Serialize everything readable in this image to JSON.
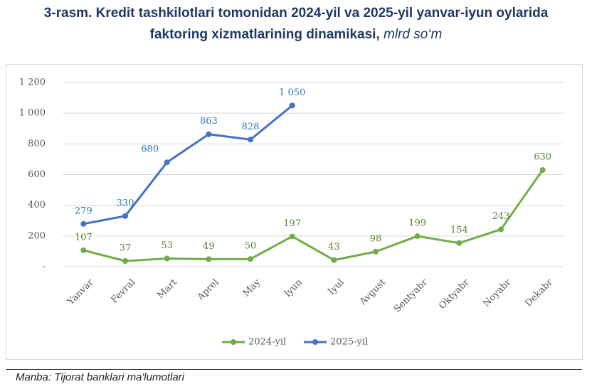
{
  "chart_data": {
    "type": "line",
    "title": "3-rasm. Kredit tashkilotlari tomonidan 2024-yil va 2025-yil yanvar-iyun oylarida faktoring xizmatlarining dinamikasi,",
    "unit": "mlrd so‘m",
    "categories": [
      "Yanvar",
      "Fevral",
      "Mart",
      "Aprel",
      "May",
      "Iyun",
      "Iyul",
      "Avgust",
      "Sentyabr",
      "Oktyabr",
      "Noyabr",
      "Dekabr"
    ],
    "series": [
      {
        "name": "2024-yil",
        "color": "#70ad47",
        "label_color": "#548235",
        "values": [
          107,
          37,
          53,
          49,
          50,
          197,
          43,
          98,
          199,
          154,
          243,
          630
        ]
      },
      {
        "name": "2025-yil",
        "color": "#4472c4",
        "label_color": "#2e75b6",
        "values": [
          279,
          330,
          680,
          863,
          828,
          1050,
          null,
          null,
          null,
          null,
          null,
          null
        ],
        "value_labels": [
          "279",
          "330",
          "680",
          "863",
          "828",
          "1 050",
          null,
          null,
          null,
          null,
          null,
          null
        ]
      }
    ],
    "ylim": [
      0,
      1200
    ],
    "yticks": [
      {
        "value": 0,
        "label": "-"
      },
      200,
      400,
      600,
      800,
      {
        "value": 1000,
        "label": "1 000"
      },
      {
        "value": 1200,
        "label": "1 200"
      }
    ],
    "grid": true,
    "legend": "bottom",
    "source": "Manba: Tijorat banklari ma'lumotlari"
  }
}
